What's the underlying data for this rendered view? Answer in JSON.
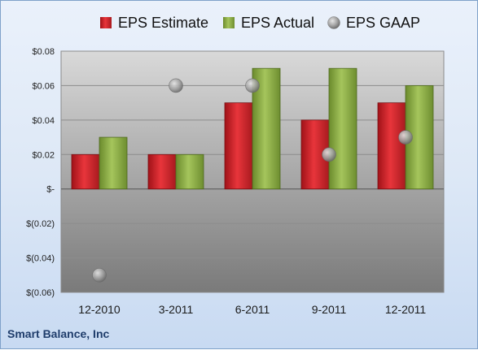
{
  "chart_data": {
    "type": "bar",
    "categories": [
      "12-2010",
      "3-2011",
      "6-2011",
      "9-2011",
      "12-2011"
    ],
    "series": [
      {
        "name": "EPS Estimate",
        "kind": "bar",
        "color": "#d2262c",
        "values": [
          0.02,
          0.02,
          0.05,
          0.04,
          0.05
        ]
      },
      {
        "name": "EPS Actual",
        "kind": "bar",
        "color": "#8fb04a",
        "values": [
          0.03,
          0.02,
          0.07,
          0.07,
          0.06
        ]
      },
      {
        "name": "EPS GAAP",
        "kind": "marker",
        "color": "#b0b0b0",
        "values": [
          -0.05,
          0.06,
          0.06,
          0.02,
          0.03
        ]
      }
    ],
    "ylim": [
      -0.06,
      0.08
    ],
    "yticks": [
      0.08,
      0.06,
      0.04,
      0.02,
      0,
      -0.02,
      -0.04,
      -0.06
    ],
    "ytick_labels": [
      "$0.08",
      "$0.06",
      "$0.04",
      "$0.02",
      "$-",
      "$(0.02)",
      "$(0.04)",
      "$(0.06)"
    ],
    "grid": true,
    "legend_position": "top"
  },
  "footer": {
    "company": "Smart Balance, Inc"
  }
}
